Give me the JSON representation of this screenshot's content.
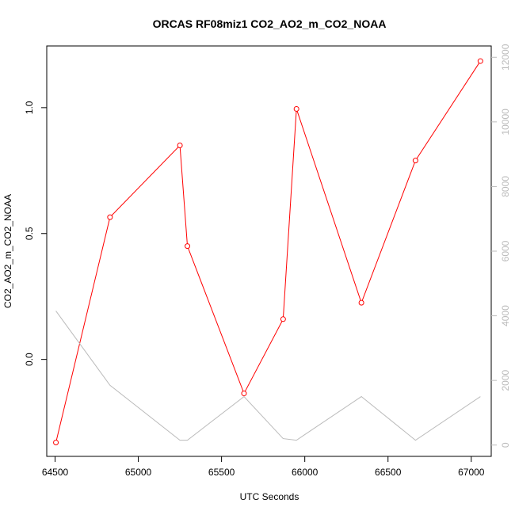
{
  "chart_data": {
    "type": "line",
    "title": "ORCAS RF08miz1 CO2_AO2_m_CO2_NOAA",
    "xlabel": "UTC Seconds",
    "ylabel": "CO2_AO2_m_CO2_NOAA",
    "xlim": [
      64450,
      67120
    ],
    "ylim": [
      -0.385,
      1.245
    ],
    "y2lim": [
      -350,
      12350
    ],
    "x_ticks": [
      64500,
      65000,
      65500,
      66000,
      66500,
      67000
    ],
    "y_ticks": [
      0.0,
      0.5,
      1.0
    ],
    "y_tick_labels": [
      "0.0",
      "0.5",
      "1.0"
    ],
    "y2_ticks": [
      0,
      2000,
      4000,
      6000,
      8000,
      10000,
      12000
    ],
    "grid": false,
    "series": [
      {
        "axis": "left",
        "color": "#ff0000",
        "markers": "open-circle",
        "x": [
          64505,
          64830,
          65250,
          65295,
          65635,
          65870,
          65950,
          66340,
          66665,
          67055
        ],
        "y": [
          -0.33,
          0.565,
          0.85,
          0.45,
          -0.135,
          0.16,
          0.995,
          0.225,
          0.79,
          1.185
        ]
      },
      {
        "axis": "right",
        "color": "#bbbbbb",
        "markers": "none",
        "x": [
          64505,
          64830,
          65250,
          65295,
          65635,
          65870,
          65950,
          66340,
          66665,
          67055
        ],
        "y": [
          4150,
          1850,
          150,
          150,
          1500,
          200,
          150,
          1500,
          150,
          1500
        ]
      }
    ]
  }
}
